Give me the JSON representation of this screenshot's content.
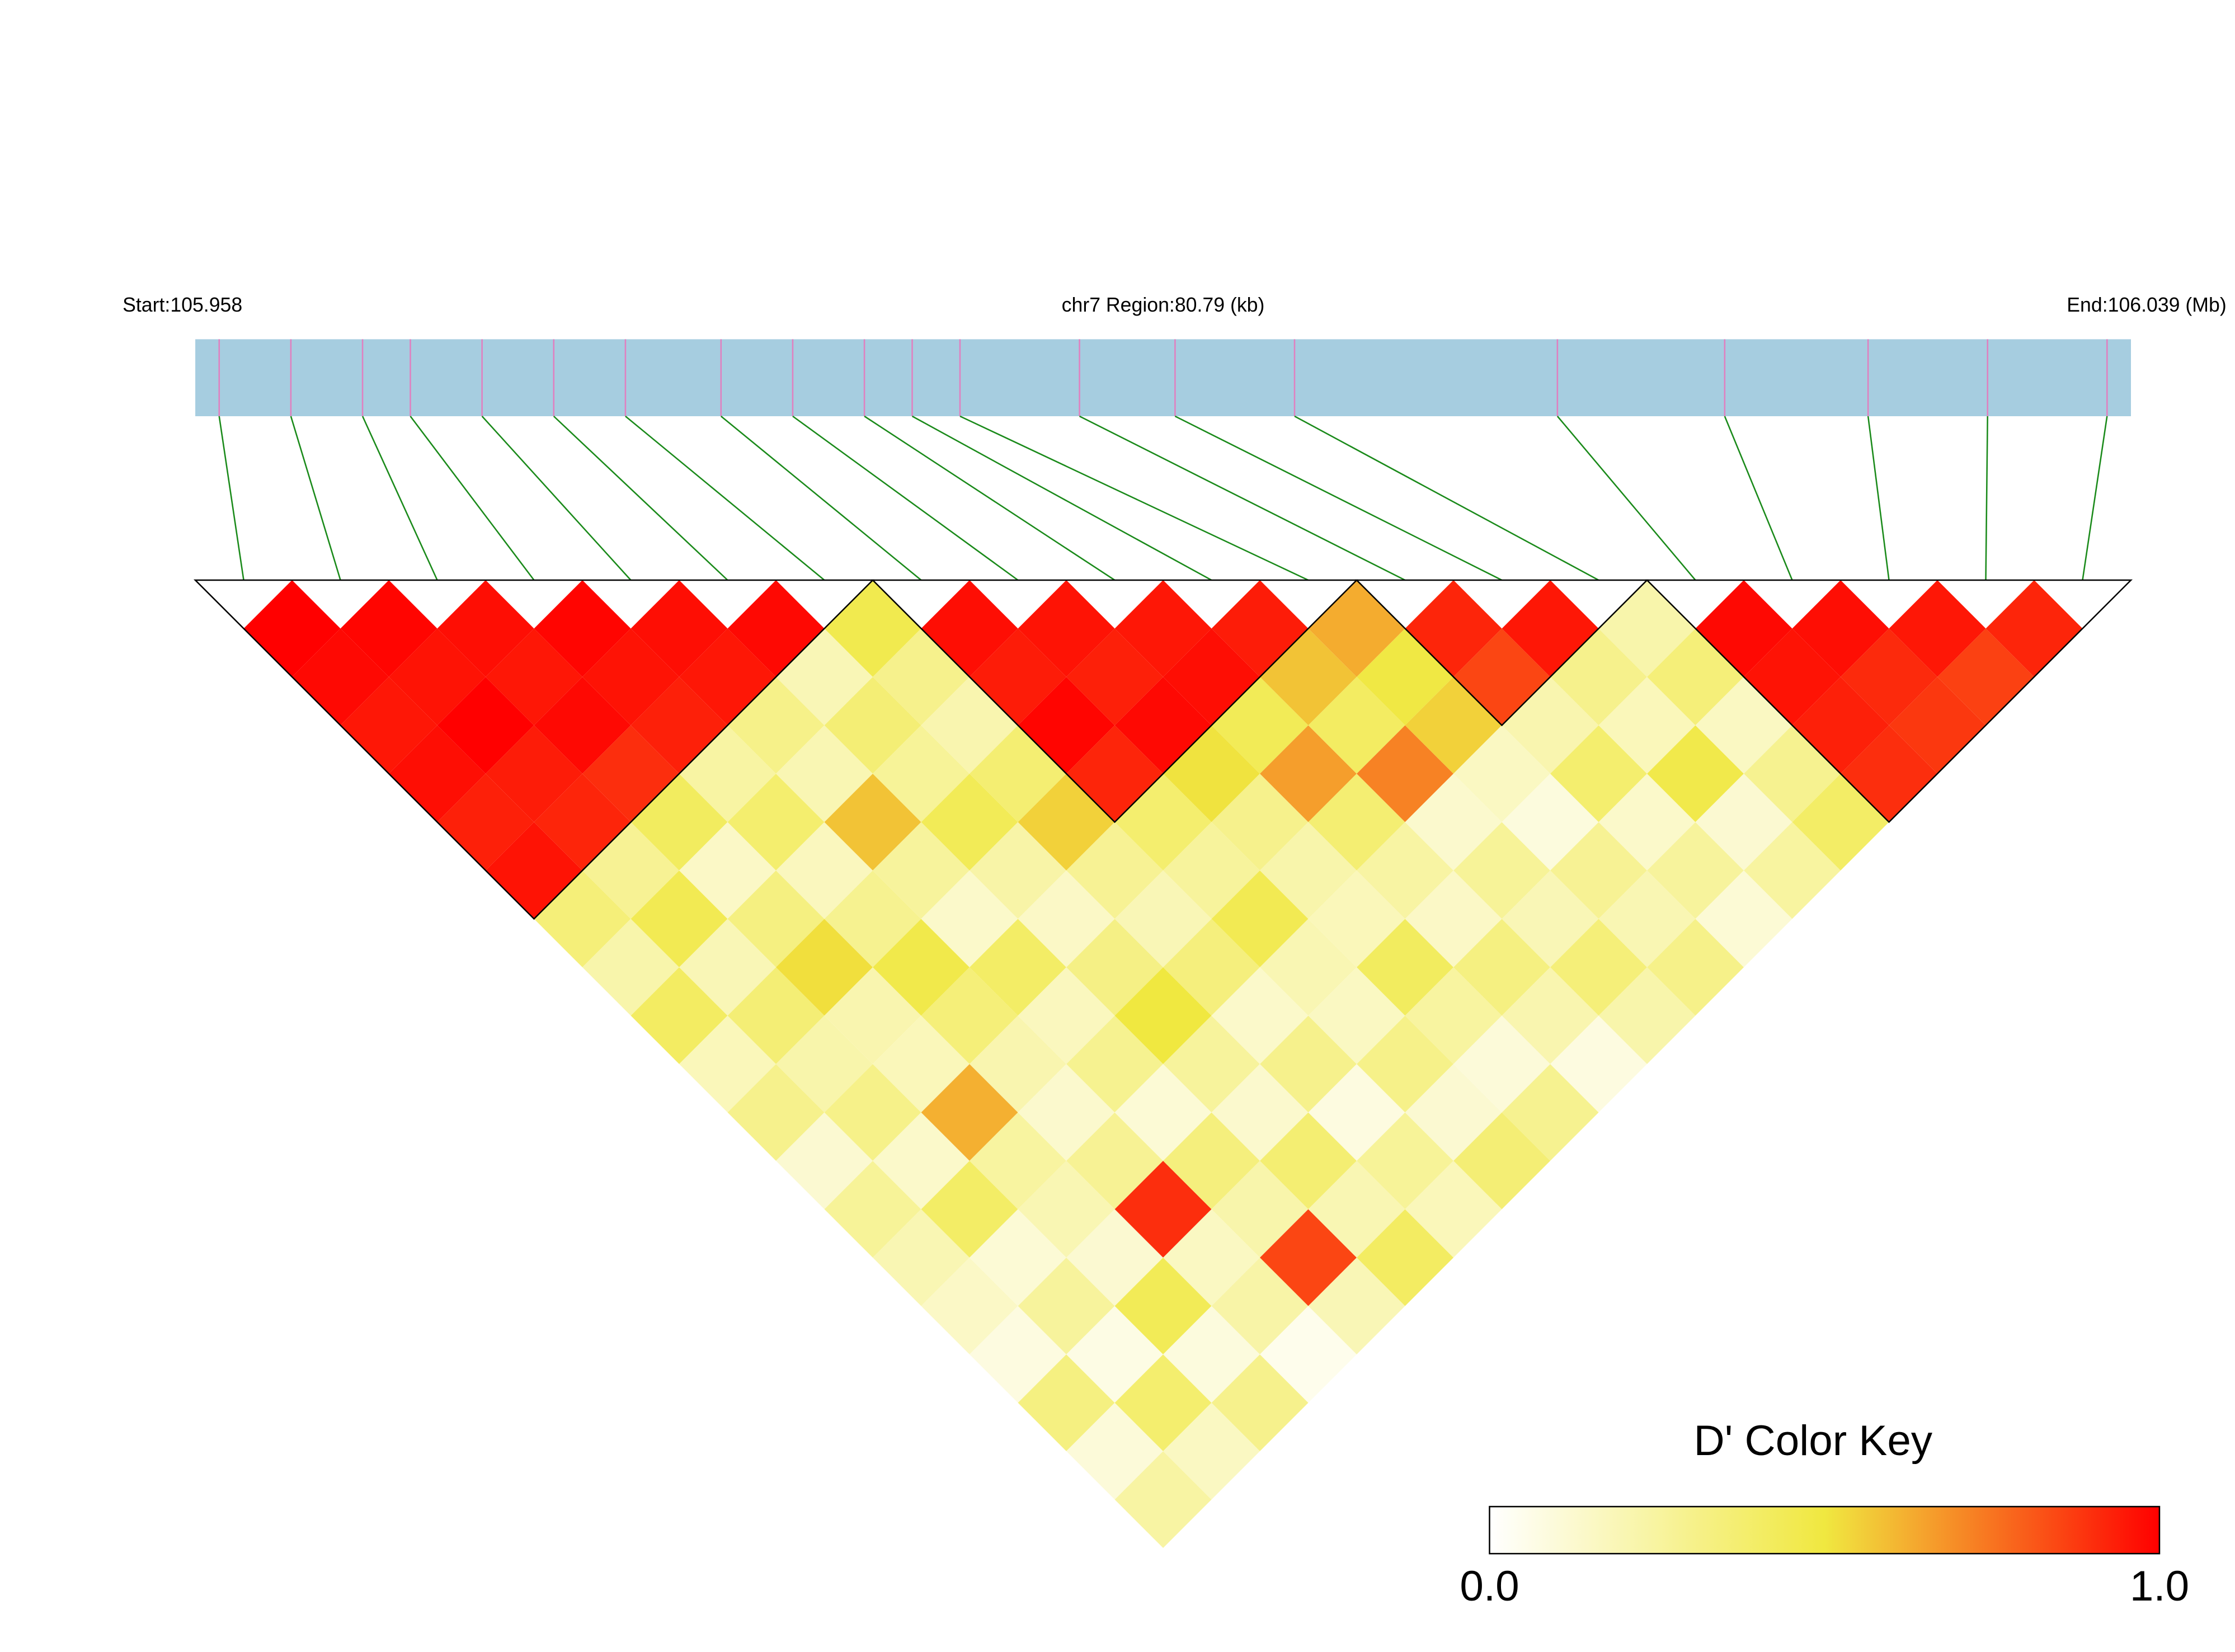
{
  "chart_data": {
    "type": "ld_heatmap",
    "start_label": "Start:105.958",
    "region_label": "chr7 Region:80.79 (kb)",
    "end_label": "End:106.039 (Mb)",
    "xlim": [
      105.958,
      106.039
    ],
    "positions": [
      105.959,
      105.962,
      105.965,
      105.967,
      105.97,
      105.973,
      105.976,
      105.98,
      105.983,
      105.986,
      105.988,
      105.99,
      105.995,
      105.999,
      106.004,
      106.015,
      106.022,
      106.028,
      106.033,
      106.038
    ],
    "ld": [
      [
        1,
        0.98,
        0.95,
        0.97,
        0.93,
        0.96,
        0.35,
        0.22,
        0.41,
        0.18,
        0.3,
        0.12,
        0.27,
        0.2,
        0.15,
        0.08,
        0.33,
        0.1,
        0.24
      ],
      [
        0.99,
        0.96,
        1,
        0.94,
        0.92,
        0.28,
        0.45,
        0.19,
        0.36,
        0.22,
        0.31,
        0.14,
        0.4,
        0.11,
        0.26,
        0.07,
        0.38,
        0.16
      ],
      [
        0.97,
        0.95,
        0.98,
        0.9,
        0.42,
        0.15,
        0.33,
        0.52,
        0.21,
        0.18,
        0.62,
        0.25,
        0.2,
        0.12,
        0.44,
        0.09,
        0.3
      ],
      [
        0.99,
        0.96,
        0.93,
        0.24,
        0.38,
        0.17,
        0.29,
        0.47,
        0.35,
        0.21,
        0.13,
        0.28,
        0.9,
        0.16,
        0.23,
        0.05
      ],
      [
        0.97,
        0.95,
        0.31,
        0.2,
        0.58,
        0.26,
        0.14,
        0.4,
        0.17,
        0.29,
        0.11,
        0.34,
        0.22,
        0.85,
        0.19
      ],
      [
        0.98,
        0.19,
        0.36,
        0.27,
        0.44,
        0.23,
        0.15,
        0.32,
        0.5,
        0.26,
        0.13,
        0.37,
        0.2,
        0.41
      ],
      [
        0.46,
        0.3,
        0.21,
        0.37,
        0.55,
        0.28,
        0.19,
        0.34,
        0.14,
        0.3,
        0.08,
        0.27,
        0.18
      ],
      [
        0.97,
        0.94,
        0.99,
        0.92,
        0.38,
        0.26,
        0.45,
        0.2,
        0.16,
        0.31,
        0.12,
        0.36
      ],
      [
        0.96,
        0.93,
        0.98,
        0.51,
        0.3,
        0.22,
        0.18,
        0.42,
        0.25,
        0.1,
        0.29
      ],
      [
        0.95,
        0.97,
        0.44,
        0.66,
        0.37,
        0.24,
        0.15,
        0.33,
        0.21,
        0.08
      ],
      [
        0.94,
        0.58,
        0.41,
        0.72,
        0.13,
        0.27,
        0.19,
        0.35,
        0.22
      ],
      [
        0.63,
        0.49,
        0.55,
        0.16,
        0.09,
        0.28,
        0.2,
        0.31
      ],
      [
        0.92,
        0.85,
        0.21,
        0.38,
        0.14,
        0.26,
        0.11
      ],
      [
        0.95,
        0.3,
        0.18,
        0.47,
        0.12,
        0.25
      ],
      [
        0.22,
        0.35,
        0.16,
        0.29,
        0.4
      ],
      [
        0.98,
        0.96,
        0.93,
        0.9
      ],
      [
        0.97,
        0.91,
        0.88
      ],
      [
        0.95,
        0.86
      ],
      [
        0.92
      ]
    ],
    "colorkey_title": "D' Color Key",
    "colorkey_ticks": [
      {
        "value": 0,
        "label": "0.0"
      },
      {
        "value": 1,
        "label": "1.0"
      }
    ],
    "colors": [
      "#ffffff",
      "#f0e840",
      "#ff0000"
    ],
    "bar_color": "#a6cde0",
    "snp_line_color": "#e080c0",
    "connector_color": "#1a8a1a"
  }
}
